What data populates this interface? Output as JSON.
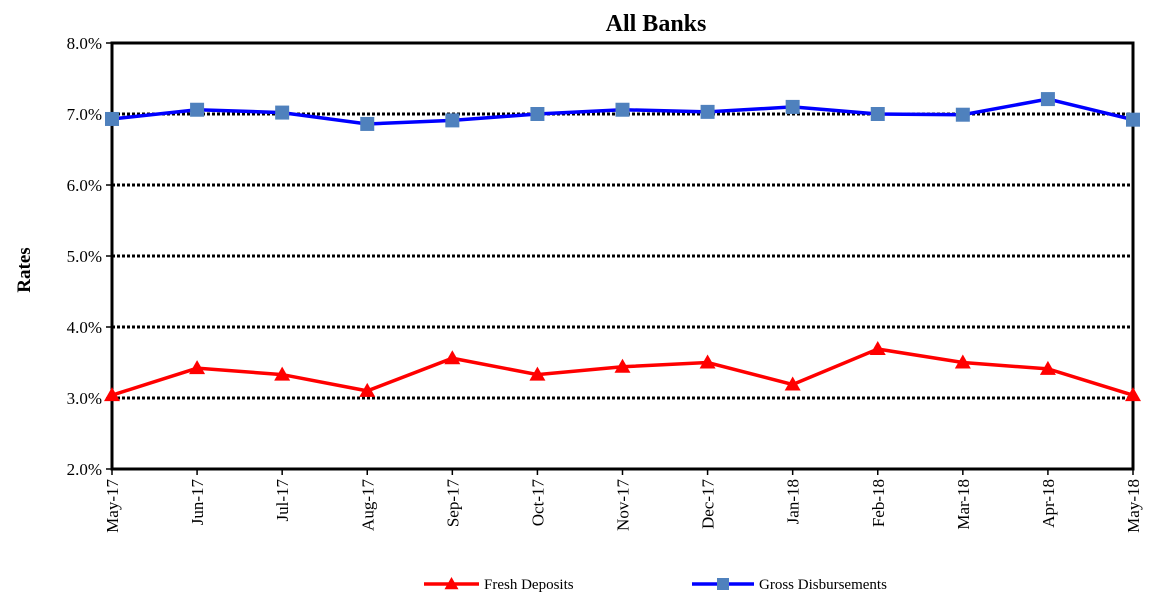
{
  "chart_data": {
    "type": "line",
    "title": "All Banks",
    "xlabel": "",
    "ylabel": "Rates",
    "ylim": [
      2.0,
      8.0
    ],
    "yticks": [
      "2.0%",
      "3.0%",
      "4.0%",
      "5.0%",
      "6.0%",
      "7.0%",
      "8.0%"
    ],
    "categories": [
      "May-17",
      "Jun-17",
      "Jul-17",
      "Aug-17",
      "Sep-17",
      "Oct-17",
      "Nov-17",
      "Dec-17",
      "Jan-18",
      "Feb-18",
      "Mar-18",
      "Apr-18",
      "May-18"
    ],
    "grid": "horizontal dashed",
    "legend_position": "bottom",
    "series": [
      {
        "name": "Fresh Deposits",
        "color": "#ff0000",
        "marker": "triangle",
        "values": [
          3.04,
          3.42,
          3.33,
          3.1,
          3.56,
          3.33,
          3.44,
          3.5,
          3.19,
          3.69,
          3.5,
          3.41,
          3.04
        ]
      },
      {
        "name": "Gross Disbursements",
        "color": "#0000ff",
        "marker_color": "#4f81bd",
        "marker": "square",
        "values": [
          6.93,
          7.06,
          7.02,
          6.86,
          6.91,
          7.0,
          7.06,
          7.03,
          7.1,
          7.0,
          6.99,
          7.21,
          6.92
        ]
      }
    ]
  }
}
